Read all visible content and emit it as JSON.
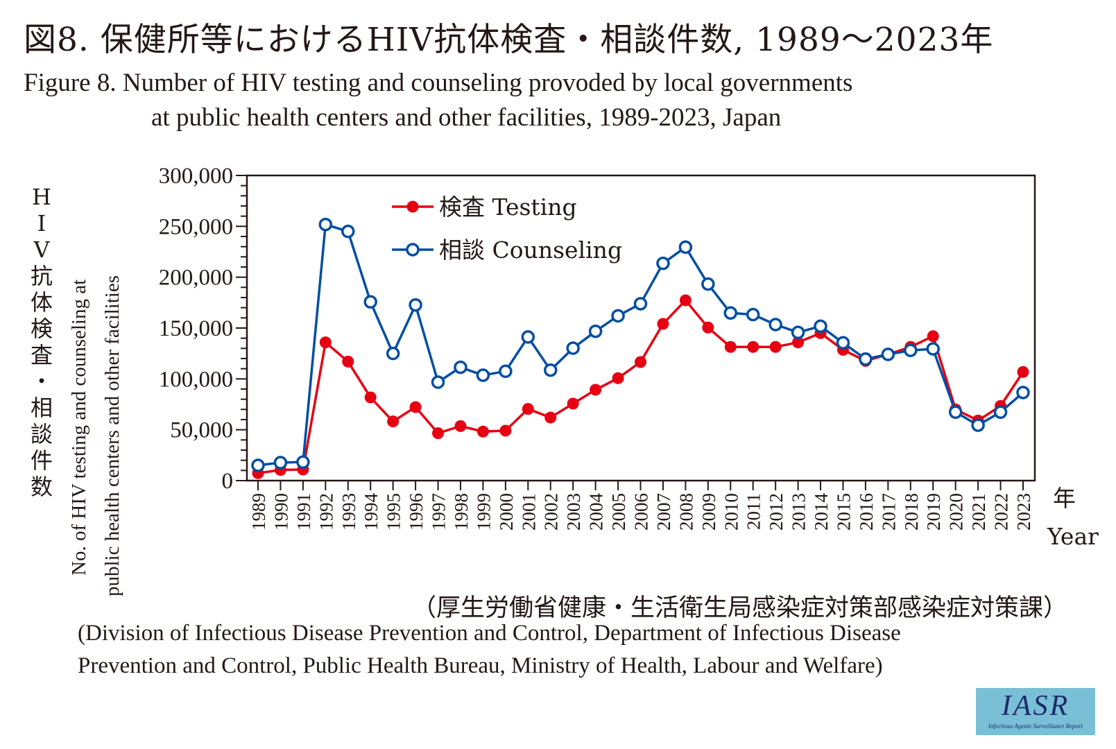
{
  "title_jp": "図8. 保健所等におけるHIV抗体検査・相談件数, 1989～2023年",
  "title_en_line1": "Figure 8. Number of HIV testing and counseling provoded by local governments",
  "title_en_line2": "at public health centers and other facilities, 1989-2023, Japan",
  "ylabel_jp": [
    "H",
    "I",
    "V",
    "抗",
    "体",
    "検",
    "査",
    "・",
    "相",
    "談",
    "件",
    "数"
  ],
  "ylabel_en_line1": "No. of HIV testing and counseling at",
  "ylabel_en_line2": "public health centers and other facilities",
  "xlabel_jp": "年",
  "xlabel_en": "Year",
  "source_jp": "（厚生労働省健康・生活衛生局感染症対策部感染症対策課）",
  "source_en_line1": "(Division of Infectious Disease Prevention and Control, Department of Infectious Disease",
  "source_en_line2": "Prevention and Control, Public Health Bureau, Ministry of Health, Labour and Welfare)",
  "logo": {
    "main": "IASR",
    "sub": "Infectious Agents Surveillance Report",
    "bg_color": "#79bfd6"
  },
  "chart_data": {
    "type": "line",
    "title": "図8. 保健所等におけるHIV抗体検査・相談件数, 1989～2023年",
    "xlabel": "年 Year",
    "ylabel": "HIV抗体検査・相談件数 / No. of HIV testing and counseling at public health centers and other facilities",
    "ylim": [
      0,
      300000
    ],
    "yticks": [
      0,
      50000,
      100000,
      150000,
      200000,
      250000,
      300000
    ],
    "ytick_labels": [
      "0",
      "50,000",
      "100,000",
      "150,000",
      "200,000",
      "250,000",
      "300,000"
    ],
    "grid": false,
    "legend_position": "top-left",
    "x": [
      "1989",
      "1990",
      "1991",
      "1992",
      "1993",
      "1994",
      "1995",
      "1996",
      "1997",
      "1998",
      "1999",
      "2000",
      "2001",
      "2002",
      "2003",
      "2004",
      "2005",
      "2006",
      "2007",
      "2008",
      "2009",
      "2010",
      "2011",
      "2012",
      "2013",
      "2014",
      "2015",
      "2016",
      "2017",
      "2018",
      "2019",
      "2020",
      "2021",
      "2022",
      "2023"
    ],
    "series": [
      {
        "name": "検査 Testing",
        "color": "#e60012",
        "marker": "filled-circle",
        "values": [
          7300,
          10500,
          10900,
          135900,
          117000,
          81800,
          58200,
          72300,
          46600,
          53600,
          48200,
          49100,
          70500,
          62000,
          75700,
          89300,
          100700,
          116600,
          154100,
          177300,
          150500,
          131400,
          131400,
          131400,
          135900,
          145000,
          128600,
          117700,
          124100,
          131400,
          142000,
          70000,
          59100,
          73400,
          106800
        ]
      },
      {
        "name": "相談 Counseling",
        "color": "#004ea2",
        "marker": "open-circle",
        "values": [
          15000,
          17700,
          18200,
          251800,
          245000,
          175700,
          125000,
          172700,
          96800,
          111400,
          103600,
          107500,
          141200,
          108600,
          130200,
          146800,
          162000,
          173900,
          213600,
          229500,
          193200,
          164800,
          163200,
          153400,
          145700,
          151800,
          135500,
          119500,
          124100,
          128000,
          129500,
          67300,
          54500,
          67300,
          86600
        ]
      }
    ]
  }
}
